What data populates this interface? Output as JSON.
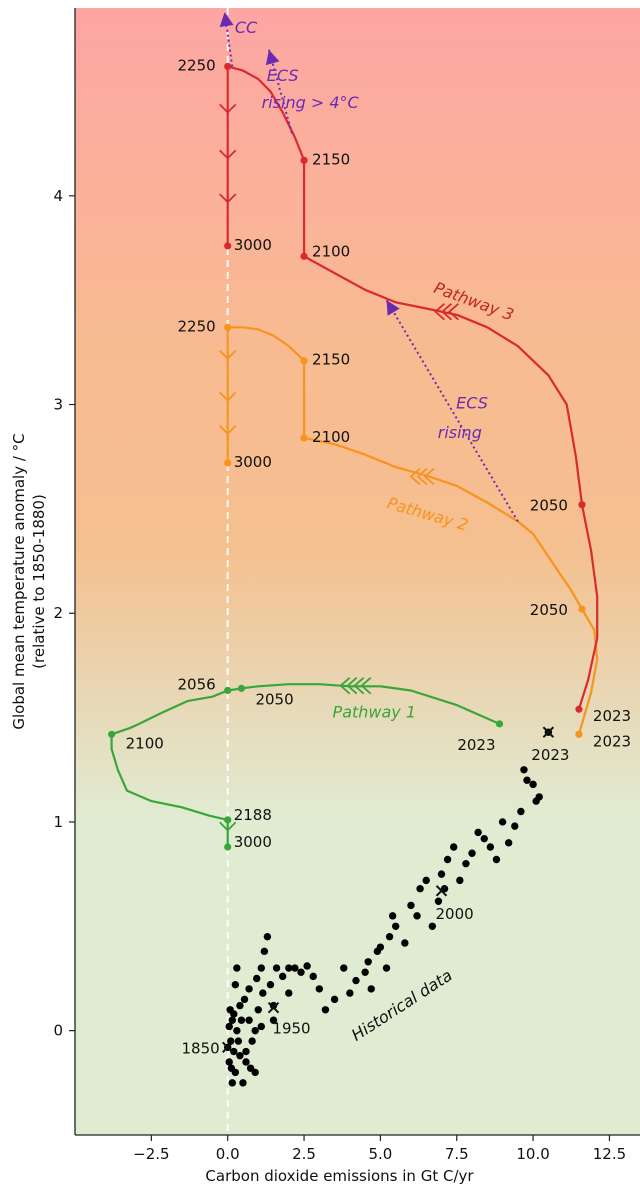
{
  "chart_data": {
    "type": "line",
    "xlabel": "Carbon dioxide emissions in Gt C/yr",
    "ylabel_lines": [
      "Global mean temperature anomaly / °C",
      "(relative to 1850-1880)"
    ],
    "xlim": [
      -5,
      13.5
    ],
    "ylim": [
      -0.5,
      4.9
    ],
    "xticks": [
      -2.5,
      0.0,
      2.5,
      5.0,
      7.5,
      10.0,
      12.5
    ],
    "xtick_labels": [
      "−2.5",
      "0.0",
      "2.5",
      "5.0",
      "7.5",
      "10.0",
      "12.5"
    ],
    "yticks": [
      0,
      1,
      2,
      3,
      4
    ],
    "ytick_labels": [
      "0",
      "1",
      "2",
      "3",
      "4"
    ],
    "grid": false,
    "background": {
      "top_color": "#fda6a4",
      "mid_color": "#f5c08f",
      "bottom_color": "#e0ecd2"
    },
    "series": [
      {
        "name": "Pathway 1",
        "color": "#3aa53a",
        "points": [
          [
            8.9,
            1.47
          ],
          [
            7.5,
            1.56
          ],
          [
            6.0,
            1.63
          ],
          [
            5.0,
            1.65
          ],
          [
            4.0,
            1.65
          ],
          [
            3.0,
            1.66
          ],
          [
            2.0,
            1.66
          ],
          [
            1.0,
            1.65
          ],
          [
            0.45,
            1.64
          ],
          [
            0.0,
            1.63
          ],
          [
            -0.5,
            1.6
          ],
          [
            -1.3,
            1.58
          ],
          [
            -2.2,
            1.52
          ],
          [
            -2.9,
            1.47
          ],
          [
            -3.2,
            1.45
          ],
          [
            -3.8,
            1.42
          ],
          [
            -3.8,
            1.35
          ],
          [
            -3.6,
            1.25
          ],
          [
            -3.3,
            1.15
          ],
          [
            -2.5,
            1.1
          ],
          [
            -1.5,
            1.07
          ],
          [
            -0.6,
            1.03
          ],
          [
            0.0,
            1.01
          ],
          [
            0.0,
            0.88
          ]
        ],
        "markers": [
          [
            8.9,
            1.47
          ],
          [
            0.0,
            1.63
          ],
          [
            0.45,
            1.64
          ],
          [
            -3.8,
            1.42
          ],
          [
            0.0,
            1.01
          ],
          [
            0.0,
            0.88
          ]
        ]
      },
      {
        "name": "Pathway 2",
        "color": "#f7931e",
        "points": [
          [
            11.5,
            1.42
          ],
          [
            11.9,
            1.62
          ],
          [
            12.1,
            1.78
          ],
          [
            12.0,
            1.92
          ],
          [
            11.6,
            2.02
          ],
          [
            11.2,
            2.12
          ],
          [
            10.6,
            2.25
          ],
          [
            10.0,
            2.38
          ],
          [
            9.5,
            2.44
          ],
          [
            8.5,
            2.53
          ],
          [
            7.5,
            2.61
          ],
          [
            6.5,
            2.66
          ],
          [
            5.5,
            2.7
          ],
          [
            4.5,
            2.76
          ],
          [
            3.5,
            2.81
          ],
          [
            2.5,
            2.84
          ],
          [
            2.5,
            3.21
          ],
          [
            2.0,
            3.28
          ],
          [
            1.5,
            3.33
          ],
          [
            1.0,
            3.36
          ],
          [
            0.5,
            3.37
          ],
          [
            0.0,
            3.37
          ],
          [
            0.0,
            2.72
          ]
        ],
        "markers": [
          [
            11.5,
            1.42
          ],
          [
            11.6,
            2.02
          ],
          [
            2.5,
            2.84
          ],
          [
            2.5,
            3.21
          ],
          [
            0.0,
            3.37
          ],
          [
            0.0,
            2.72
          ]
        ]
      },
      {
        "name": "Pathway 3",
        "color": "#d92b2f",
        "points": [
          [
            11.5,
            1.54
          ],
          [
            11.8,
            1.68
          ],
          [
            12.1,
            1.88
          ],
          [
            12.1,
            2.08
          ],
          [
            11.9,
            2.3
          ],
          [
            11.6,
            2.52
          ],
          [
            11.4,
            2.75
          ],
          [
            11.1,
            3.0
          ],
          [
            10.5,
            3.14
          ],
          [
            9.5,
            3.28
          ],
          [
            8.5,
            3.37
          ],
          [
            7.5,
            3.43
          ],
          [
            6.5,
            3.46
          ],
          [
            5.5,
            3.49
          ],
          [
            4.5,
            3.55
          ],
          [
            3.5,
            3.63
          ],
          [
            2.5,
            3.71
          ],
          [
            2.5,
            4.17
          ],
          [
            2.2,
            4.28
          ],
          [
            1.8,
            4.4
          ],
          [
            1.4,
            4.5
          ],
          [
            1.0,
            4.56
          ],
          [
            0.5,
            4.6
          ],
          [
            0.0,
            4.62
          ],
          [
            0.0,
            3.76
          ]
        ],
        "markers": [
          [
            11.5,
            1.54
          ],
          [
            11.6,
            2.52
          ],
          [
            2.5,
            3.71
          ],
          [
            2.5,
            4.17
          ],
          [
            0.0,
            4.62
          ],
          [
            0.0,
            3.76
          ]
        ]
      }
    ],
    "historical": {
      "name": "Historical data",
      "color": "#000000",
      "points": [
        [
          0.0,
          -0.08
        ],
        [
          0.1,
          -0.05
        ],
        [
          0.05,
          -0.15
        ],
        [
          0.15,
          0.05
        ],
        [
          0.2,
          -0.1
        ],
        [
          0.08,
          0.1
        ],
        [
          0.25,
          -0.2
        ],
        [
          0.3,
          0.0
        ],
        [
          0.12,
          -0.18
        ],
        [
          0.35,
          -0.05
        ],
        [
          0.05,
          0.02
        ],
        [
          0.2,
          0.08
        ],
        [
          0.4,
          0.12
        ],
        [
          0.5,
          -0.25
        ],
        [
          0.45,
          0.05
        ],
        [
          0.6,
          -0.1
        ],
        [
          0.55,
          0.15
        ],
        [
          0.7,
          0.2
        ],
        [
          0.8,
          -0.05
        ],
        [
          0.75,
          -0.18
        ],
        [
          0.9,
          0.0
        ],
        [
          1.0,
          0.1
        ],
        [
          0.95,
          0.25
        ],
        [
          1.1,
          0.3
        ],
        [
          1.2,
          0.38
        ],
        [
          1.3,
          0.45
        ],
        [
          1.15,
          0.18
        ],
        [
          1.4,
          0.22
        ],
        [
          1.5,
          0.12
        ],
        [
          1.6,
          0.3
        ],
        [
          0.3,
          0.3
        ],
        [
          0.25,
          0.22
        ],
        [
          1.8,
          0.26
        ],
        [
          2.0,
          0.18
        ],
        [
          2.2,
          0.3
        ],
        [
          2.4,
          0.28
        ],
        [
          2.6,
          0.31
        ],
        [
          2.8,
          0.26
        ],
        [
          3.0,
          0.2
        ],
        [
          3.2,
          0.1
        ],
        [
          3.5,
          0.15
        ],
        [
          3.8,
          0.3
        ],
        [
          4.0,
          0.18
        ],
        [
          4.2,
          0.24
        ],
        [
          4.5,
          0.28
        ],
        [
          4.7,
          0.2
        ],
        [
          4.6,
          0.33
        ],
        [
          4.9,
          0.38
        ],
        [
          5.0,
          0.4
        ],
        [
          5.3,
          0.45
        ],
        [
          5.4,
          0.55
        ],
        [
          5.5,
          0.5
        ],
        [
          5.8,
          0.42
        ],
        [
          6.0,
          0.6
        ],
        [
          6.2,
          0.55
        ],
        [
          6.3,
          0.68
        ],
        [
          6.5,
          0.72
        ],
        [
          6.7,
          0.5
        ],
        [
          6.9,
          0.62
        ],
        [
          7.0,
          0.75
        ],
        [
          7.2,
          0.82
        ],
        [
          7.4,
          0.88
        ],
        [
          7.6,
          0.72
        ],
        [
          7.8,
          0.8
        ],
        [
          8.0,
          0.85
        ],
        [
          8.2,
          0.95
        ],
        [
          8.4,
          0.92
        ],
        [
          8.6,
          0.88
        ],
        [
          8.8,
          0.82
        ],
        [
          9.0,
          1.0
        ],
        [
          9.2,
          0.9
        ],
        [
          9.4,
          0.98
        ],
        [
          9.6,
          1.05
        ],
        [
          9.8,
          1.2
        ],
        [
          10.0,
          1.18
        ],
        [
          10.1,
          1.1
        ],
        [
          10.2,
          1.12
        ],
        [
          9.7,
          1.25
        ],
        [
          10.5,
          1.43
        ],
        [
          1.5,
          0.05
        ],
        [
          2.0,
          0.3
        ],
        [
          0.6,
          -0.15
        ],
        [
          0.4,
          -0.12
        ],
        [
          0.7,
          0.05
        ],
        [
          0.9,
          -0.2
        ],
        [
          1.1,
          0.02
        ],
        [
          0.15,
          -0.25
        ],
        [
          5.2,
          0.3
        ],
        [
          7.1,
          0.68
        ]
      ],
      "crosses": [
        [
          0.0,
          -0.08
        ],
        [
          1.5,
          0.11
        ],
        [
          7.0,
          0.67
        ],
        [
          10.5,
          1.43
        ]
      ]
    },
    "year_labels": [
      {
        "text": "1850",
        "x": 0.0,
        "y": -0.08,
        "anchor": "end",
        "dx": -8,
        "dy": 6,
        "color": "#111111"
      },
      {
        "text": "1950",
        "x": 1.5,
        "y": 0.11,
        "anchor": "middle",
        "dx": 18,
        "dy": 26,
        "color": "#111111"
      },
      {
        "text": "2000",
        "x": 7.0,
        "y": 0.67,
        "anchor": "start",
        "dx": -6,
        "dy": 28,
        "color": "#111111"
      },
      {
        "text": "2023",
        "x": 10.5,
        "y": 1.43,
        "anchor": "middle",
        "dx": 2,
        "dy": 28,
        "color": "#111111"
      },
      {
        "text": "2023",
        "x": 8.9,
        "y": 1.47,
        "anchor": "end",
        "dx": -4,
        "dy": 26,
        "color": "#3aa53a"
      },
      {
        "text": "2056",
        "x": 0.0,
        "y": 1.63,
        "anchor": "end",
        "dx": -12,
        "dy": -1,
        "color": "#111111"
      },
      {
        "text": "2050",
        "x": 0.45,
        "y": 1.64,
        "anchor": "start",
        "dx": 14,
        "dy": 16,
        "color": "#111111"
      },
      {
        "text": "2100",
        "x": -3.8,
        "y": 1.42,
        "anchor": "start",
        "dx": 14,
        "dy": 14,
        "color": "#111111"
      },
      {
        "text": "2188",
        "x": 0.0,
        "y": 1.01,
        "anchor": "start",
        "dx": 6,
        "dy": 0,
        "color": "#111111"
      },
      {
        "text": "3000",
        "x": 0.0,
        "y": 0.88,
        "anchor": "start",
        "dx": 6,
        "dy": 0,
        "color": "#111111"
      },
      {
        "text": "2023",
        "x": 11.5,
        "y": 1.54,
        "anchor": "start",
        "dx": 14,
        "dy": 12,
        "color": "#d92b2f"
      },
      {
        "text": "2023",
        "x": 11.5,
        "y": 1.42,
        "anchor": "start",
        "dx": 14,
        "dy": 12,
        "color": "#f7931e"
      },
      {
        "text": "2050",
        "x": 11.6,
        "y": 2.02,
        "anchor": "end",
        "dx": -14,
        "dy": 6,
        "color": "#111111"
      },
      {
        "text": "2050",
        "x": 11.6,
        "y": 2.52,
        "anchor": "end",
        "dx": -14,
        "dy": 6,
        "color": "#111111"
      },
      {
        "text": "2100",
        "x": 2.5,
        "y": 2.84,
        "anchor": "start",
        "dx": 8,
        "dy": 4,
        "color": "#111111"
      },
      {
        "text": "2150",
        "x": 2.5,
        "y": 3.21,
        "anchor": "start",
        "dx": 8,
        "dy": 4,
        "color": "#111111"
      },
      {
        "text": "2250",
        "x": 0.0,
        "y": 3.37,
        "anchor": "end",
        "dx": -12,
        "dy": 4,
        "color": "#111111"
      },
      {
        "text": "3000",
        "x": 0.0,
        "y": 2.72,
        "anchor": "start",
        "dx": 6,
        "dy": 4,
        "color": "#111111"
      },
      {
        "text": "2100",
        "x": 2.5,
        "y": 3.71,
        "anchor": "start",
        "dx": 8,
        "dy": 0,
        "color": "#111111"
      },
      {
        "text": "2150",
        "x": 2.5,
        "y": 4.17,
        "anchor": "start",
        "dx": 8,
        "dy": 4,
        "color": "#111111"
      },
      {
        "text": "2250",
        "x": 0.0,
        "y": 4.62,
        "anchor": "end",
        "dx": -12,
        "dy": 4,
        "color": "#111111"
      },
      {
        "text": "3000",
        "x": 0.0,
        "y": 3.76,
        "anchor": "start",
        "dx": 6,
        "dy": 4,
        "color": "#111111"
      }
    ],
    "annotations": [
      {
        "text": "Pathway 1",
        "x": 4.8,
        "y": 1.5,
        "rotate": 0,
        "color": "#3aa53a",
        "lines": null
      },
      {
        "text": "Pathway 2",
        "x": 6.5,
        "y": 2.45,
        "rotate": 16,
        "color": "#f7931e",
        "lines": null
      },
      {
        "text": "Pathway 3",
        "x": 8.0,
        "y": 3.47,
        "rotate": 20,
        "color": "#c0281c",
        "lines": null
      },
      {
        "text": "Historical data",
        "x": 5.8,
        "y": 0.1,
        "rotate": -33,
        "color": "#111111",
        "lines": null
      },
      {
        "text": "CC",
        "x": 0.6,
        "y": 4.78,
        "rotate": 0,
        "color": "#6a2bb3",
        "lines": null
      },
      {
        "text": "ECS",
        "x": 8.0,
        "y": 2.98,
        "rotate": 0,
        "color": "#6a2bb3",
        "lines": null
      },
      {
        "text": "rising",
        "x": 7.6,
        "y": 2.84,
        "rotate": 0,
        "color": "#6a2bb3",
        "lines": null
      },
      {
        "text": "ECS",
        "x": 1.8,
        "y": 4.55,
        "rotate": 0,
        "color": "#6a2bb3",
        "lines": null
      },
      {
        "text": "rising > 4°C",
        "x": 2.7,
        "y": 4.42,
        "rotate": 0,
        "color": "#6a2bb3",
        "lines": null
      }
    ],
    "dotted_arrows": [
      {
        "from": [
          0.15,
          4.62
        ],
        "to": [
          -0.1,
          4.88
        ]
      },
      {
        "from": [
          2.1,
          4.3
        ],
        "to": [
          1.35,
          4.7
        ]
      },
      {
        "from": [
          9.5,
          2.44
        ],
        "to": [
          5.2,
          3.5
        ]
      }
    ]
  }
}
